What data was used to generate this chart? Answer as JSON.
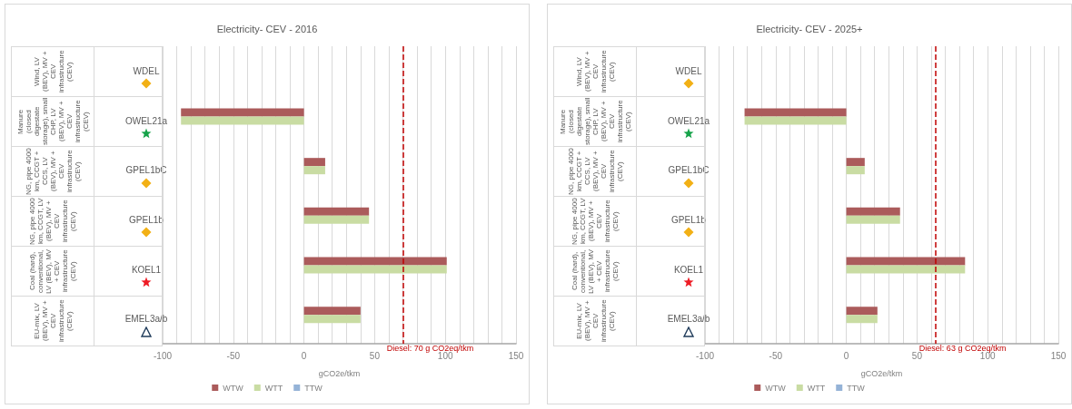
{
  "chart_data": [
    {
      "type": "bar",
      "orientation": "horizontal",
      "title": "Electricity- CEV - 2016",
      "xlabel": "gCO2e/tkm",
      "categories": [
        "WDEL",
        "OWEL21a",
        "GPEL1bC",
        "GPEL1b",
        "KOEL1",
        "EMEL3a/b"
      ],
      "annotations": [
        "Wind, LV (BEV), MV + CEV infrastructure (CEV)",
        "Manure (closed digestate storage), small CHP, LV (BEV), MV + CEV infrastructure (CEV)",
        "NG, pipe 4000 km, CCGT + CCS, LV (BEV), MV + CEV infrastructure (CEV)",
        "NG, pipe 4000 km, CCGT, LV (BEV), MV + CEV infrastructure (CEV)",
        "Coal (hard), conventional, LV (BEV), MV + CEV infrastructure (CEV)",
        "EU-mix, LV (BEV), MV + CEV infrastructure (CEV)"
      ],
      "series": [
        {
          "name": "WTW",
          "color": "#ab5b5b",
          "values": [
            0,
            -87,
            15,
            46,
            101,
            40
          ]
        },
        {
          "name": "WTT",
          "color": "#c9dca3",
          "values": [
            0,
            -87,
            15,
            46,
            101,
            40
          ]
        },
        {
          "name": "TTW",
          "color": "#95b3d7",
          "values": [
            0,
            0,
            0,
            0,
            0,
            0
          ]
        }
      ],
      "xlim": [
        -100,
        150
      ],
      "xticks": [
        -100,
        {
          "value": -90,
          "label": null
        },
        {
          "value": -80,
          "label": null
        },
        {
          "value": -70,
          "label": null
        },
        {
          "value": -60,
          "label": null
        },
        -50,
        {
          "value": -40,
          "label": null
        },
        {
          "value": -30,
          "label": null
        },
        {
          "value": -20,
          "label": null
        },
        {
          "value": -10,
          "label": null
        },
        0,
        {
          "value": 10,
          "label": null
        },
        {
          "value": 20,
          "label": null
        },
        {
          "value": 30,
          "label": null
        },
        {
          "value": 40,
          "label": null
        },
        50,
        {
          "value": 60,
          "label": null
        },
        {
          "value": 70,
          "label": null
        },
        {
          "value": 80,
          "label": null
        },
        {
          "value": 90,
          "label": null
        },
        100,
        {
          "value": 110,
          "label": null
        },
        {
          "value": 120,
          "label": null
        },
        {
          "value": 130,
          "label": null
        },
        {
          "value": 140,
          "label": null
        },
        150
      ],
      "ref_lines": [
        {
          "axis": "x",
          "value": 70,
          "label": "Diesel: 70 g CO2eq/tkm",
          "color": "#c00000",
          "line_style": "dashed"
        }
      ],
      "grid": "x",
      "legend": "bottom"
    },
    {
      "type": "bar",
      "orientation": "horizontal",
      "title": "Electricity- CEV - 2025+",
      "xlabel": "gCO2e/tkm",
      "categories": [
        "WDEL",
        "OWEL21a",
        "GPEL1bC",
        "GPEL1b",
        "KOEL1",
        "EMEL3a/b"
      ],
      "annotations": [
        "Wind, LV (BEV), MV + CEV infrastructure (CEV)",
        "Manure (closed digestate storage), small CHP, LV (BEV), MV + CEV infrastructure (CEV)",
        "NG, pipe 4000 km, CCGT + CCS, LV (BEV), MV + CEV infrastructure (CEV)",
        "NG, pipe 4000 km, CCGT, LV (BEV), MV + CEV infrastructure (CEV)",
        "Coal (hard), conventional, LV (BEV), MV + CEV infrastructure (CEV)",
        "EU-mix, LV (BEV), MV + CEV infrastructure (CEV)"
      ],
      "series": [
        {
          "name": "WTW",
          "color": "#ab5b5b",
          "values": [
            0,
            -72,
            13,
            38,
            84,
            22
          ]
        },
        {
          "name": "WTT",
          "color": "#c9dca3",
          "values": [
            0,
            -72,
            13,
            38,
            84,
            22
          ]
        },
        {
          "name": "TTW",
          "color": "#95b3d7",
          "values": [
            0,
            0,
            0,
            0,
            0,
            0
          ]
        }
      ],
      "xlim": [
        -100,
        150
      ],
      "xticks": [
        -100,
        {
          "value": -90,
          "label": null
        },
        {
          "value": -80,
          "label": null
        },
        {
          "value": -70,
          "label": null
        },
        {
          "value": -60,
          "label": null
        },
        -50,
        {
          "value": -40,
          "label": null
        },
        {
          "value": -30,
          "label": null
        },
        {
          "value": -20,
          "label": null
        },
        {
          "value": -10,
          "label": null
        },
        0,
        {
          "value": 10,
          "label": null
        },
        {
          "value": 20,
          "label": null
        },
        {
          "value": 30,
          "label": null
        },
        {
          "value": 40,
          "label": null
        },
        50,
        {
          "value": 60,
          "label": null
        },
        {
          "value": 70,
          "label": null
        },
        {
          "value": 80,
          "label": null
        },
        {
          "value": 90,
          "label": null
        },
        100,
        {
          "value": 110,
          "label": null
        },
        {
          "value": 120,
          "label": null
        },
        {
          "value": 130,
          "label": null
        },
        {
          "value": 140,
          "label": null
        },
        150
      ],
      "ref_lines": [
        {
          "axis": "x",
          "value": 63,
          "label": "Diesel: 63 g CO2eq/tkm",
          "color": "#c00000",
          "line_style": "dashed"
        }
      ],
      "grid": "x",
      "legend": "bottom"
    }
  ]
}
